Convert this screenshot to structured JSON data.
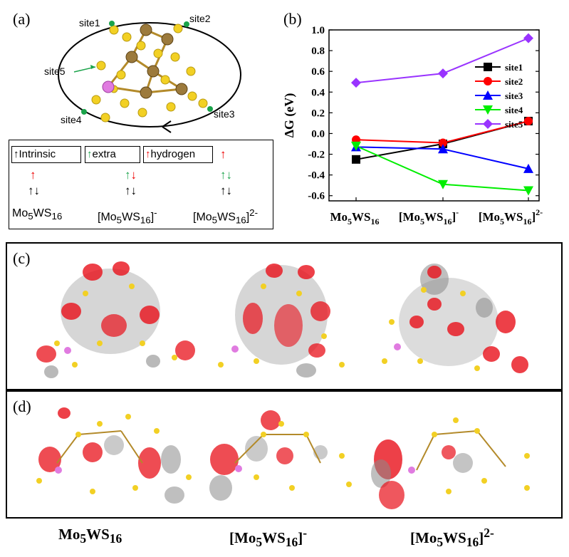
{
  "panels": {
    "a": "(a)",
    "b": "(b)",
    "c": "(c)",
    "d": "(d)"
  },
  "panel_a": {
    "sites": [
      "site1",
      "site2",
      "site5",
      "site4",
      "site3"
    ],
    "legend": {
      "intrinsic": "Intrinsic",
      "extra": "extra",
      "hydrogen": "hydrogen"
    },
    "states": [
      {
        "base": "Mo",
        "sub1": "5",
        "mid": "WS",
        "sub2": "16",
        "sup": ""
      },
      {
        "base": "[Mo",
        "sub1": "5",
        "mid": "WS",
        "sub2": "16",
        "close": "]",
        "sup": "-"
      },
      {
        "base": "[Mo",
        "sub1": "5",
        "mid": "WS",
        "sub2": "16",
        "close": "]",
        "sup": "2-"
      }
    ]
  },
  "chart_data": {
    "type": "line",
    "ylabel": "ΔG (eV)",
    "ylim": [
      -0.65,
      1.0
    ],
    "yticks": [
      "1.0",
      "0.8",
      "0.6",
      "0.4",
      "0.2",
      "0.0",
      "-0.2",
      "-0.4",
      "-0.6"
    ],
    "categories": [
      "Mo5WS16",
      "[Mo5WS16]-",
      "[Mo5WS16]2-"
    ],
    "category_labels": [
      {
        "a": "Mo",
        "s1": "5",
        "b": "WS",
        "s2": "16",
        "c": "",
        "sup": ""
      },
      {
        "a": "[Mo",
        "s1": "5",
        "b": "WS",
        "s2": "16",
        "c": "]",
        "sup": "-"
      },
      {
        "a": "[Mo",
        "s1": "5",
        "b": "WS",
        "s2": "16",
        "c": "]",
        "sup": "2-"
      }
    ],
    "legend_position": "right",
    "series": [
      {
        "name": "site1",
        "color": "#000000",
        "marker": "square",
        "values": [
          -0.25,
          -0.1,
          0.12
        ]
      },
      {
        "name": "site2",
        "color": "#ff0000",
        "marker": "circle",
        "values": [
          -0.06,
          -0.09,
          0.12
        ]
      },
      {
        "name": "site3",
        "color": "#0000ff",
        "marker": "triangle-up",
        "values": [
          -0.13,
          -0.15,
          -0.34
        ]
      },
      {
        "name": "site4",
        "color": "#00ee00",
        "marker": "triangle-down",
        "values": [
          -0.12,
          -0.49,
          -0.55
        ]
      },
      {
        "name": "site5",
        "color": "#9933ff",
        "marker": "diamond",
        "values": [
          0.49,
          0.58,
          0.92
        ]
      }
    ]
  },
  "bottom_labels": [
    {
      "a": "Mo",
      "s1": "5",
      "b": "WS",
      "s2": "16",
      "c": "",
      "sup": ""
    },
    {
      "a": "[Mo",
      "s1": "5",
      "b": "WS",
      "s2": "16",
      "c": "]",
      "sup": "-"
    },
    {
      "a": "[Mo",
      "s1": "5",
      "b": "WS",
      "s2": "16",
      "c": "]",
      "sup": "2-"
    }
  ],
  "colors": {
    "sulfur": "#f2d024",
    "molybdenum": "#9c7a3c",
    "tungsten": "#e07be0",
    "orbital_pos": "#e8101a",
    "orbital_neg": "#8a8a8a",
    "site_dot": "#1aa34a"
  }
}
